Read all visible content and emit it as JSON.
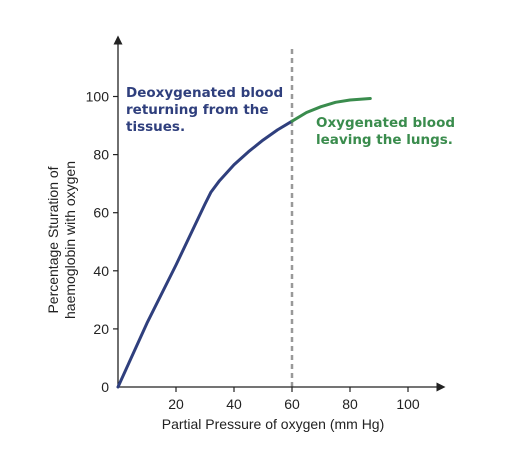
{
  "chart_data": {
    "type": "line",
    "title": "",
    "xlabel": "Partial Pressure of oxygen (mm Hg)",
    "ylabel_lines": [
      "Percentage Sturation of",
      "haemoglobin with oxygen"
    ],
    "xlim": [
      0,
      110
    ],
    "ylim": [
      0,
      118
    ],
    "xticks": [
      0,
      20,
      40,
      60,
      80,
      100
    ],
    "yticks": [
      0,
      20,
      40,
      60,
      80,
      100
    ],
    "xtick_labels": [
      "20",
      "40",
      "60",
      "80",
      "100"
    ],
    "ytick_labels": [
      "0",
      "20",
      "40",
      "60",
      "80",
      "100"
    ],
    "grid": false,
    "series": [
      {
        "color": "#2f3f7d",
        "x": [
          0,
          10,
          20,
          30,
          32,
          35,
          40,
          45,
          50,
          55,
          60
        ],
        "y": [
          0,
          22,
          42,
          63,
          67,
          71,
          76.5,
          81,
          85,
          88.5,
          91.5
        ]
      },
      {
        "color": "#3a8c4d",
        "x": [
          60,
          65,
          70,
          75,
          80,
          87
        ],
        "y": [
          91.5,
          94.5,
          96.5,
          98,
          98.8,
          99.3
        ]
      }
    ],
    "reference_line": {
      "x": 60,
      "color": "#999999",
      "style": "dashed"
    },
    "annotations": [
      {
        "lines": [
          "Deoxygenated blood",
          "returning from the",
          "tissues."
        ],
        "color": "#2f3f7d"
      },
      {
        "lines": [
          "Oxygenated blood",
          "leaving the lungs."
        ],
        "color": "#3a8c4d"
      }
    ]
  }
}
